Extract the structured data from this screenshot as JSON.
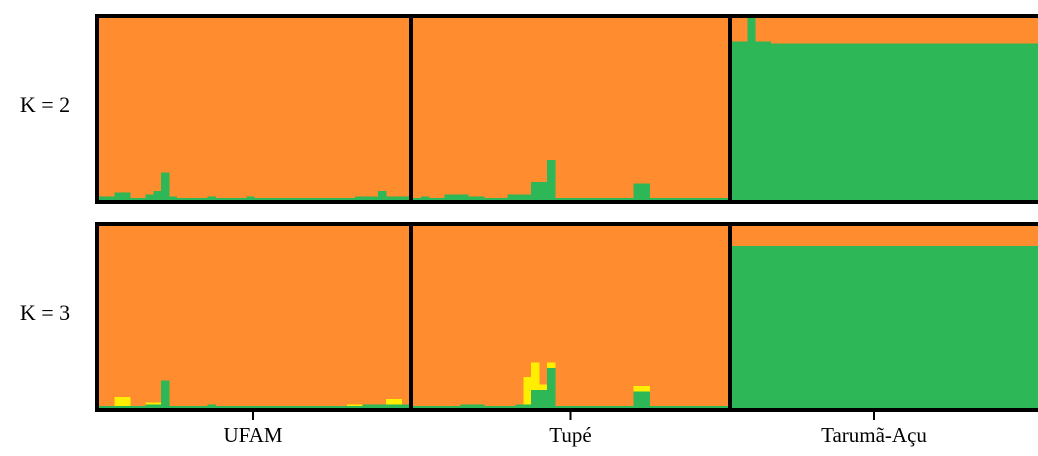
{
  "chart_data": {
    "type": "stacked-bar",
    "description_free": true,
    "colors": {
      "orange": "#ff8c2e",
      "green": "#2db757",
      "yellow": "#ffee00"
    },
    "populations": [
      {
        "name": "UFAM",
        "n": 40
      },
      {
        "name": "Tupé",
        "n": 40
      },
      {
        "name": "Tarumã-Açu",
        "n": 40
      }
    ],
    "rows": [
      {
        "label": "K = 2",
        "series": [
          {
            "color_key": "green",
            "values": [
              0.02,
              0.02,
              0.04,
              0.04,
              0.01,
              0.01,
              0.03,
              0.05,
              0.15,
              0.02,
              0.01,
              0.01,
              0.01,
              0.01,
              0.02,
              0.01,
              0.01,
              0.01,
              0.01,
              0.02,
              0.01,
              0.01,
              0.01,
              0.01,
              0.01,
              0.01,
              0.01,
              0.01,
              0.01,
              0.01,
              0.01,
              0.01,
              0.01,
              0.02,
              0.02,
              0.02,
              0.05,
              0.02,
              0.02,
              0.02,
              0.01,
              0.02,
              0.01,
              0.01,
              0.03,
              0.03,
              0.03,
              0.02,
              0.02,
              0.01,
              0.01,
              0.01,
              0.03,
              0.03,
              0.03,
              0.1,
              0.1,
              0.22,
              0.01,
              0.01,
              0.01,
              0.01,
              0.01,
              0.01,
              0.01,
              0.01,
              0.01,
              0.01,
              0.09,
              0.09,
              0.01,
              0.01,
              0.01,
              0.01,
              0.01,
              0.01,
              0.01,
              0.01,
              0.01,
              0.01,
              0.87,
              0.87,
              1.0,
              0.87,
              0.87,
              0.86,
              0.86,
              0.86,
              0.86,
              0.86,
              0.86,
              0.86,
              0.86,
              0.86,
              0.86,
              0.86,
              0.86,
              0.86,
              0.86,
              0.86,
              0.86,
              0.86,
              0.86,
              0.86,
              0.86,
              0.86,
              0.86,
              0.86,
              0.86,
              0.86,
              0.86,
              0.86,
              0.86,
              0.86,
              0.86,
              0.86,
              0.86,
              0.86,
              0.86,
              0.86
            ]
          }
        ]
      },
      {
        "label": "K = 3",
        "series": [
          {
            "color_key": "green",
            "values": [
              0.01,
              0.01,
              0.01,
              0.01,
              0.01,
              0.01,
              0.02,
              0.02,
              0.15,
              0.01,
              0.01,
              0.01,
              0.01,
              0.01,
              0.02,
              0.01,
              0.01,
              0.01,
              0.01,
              0.01,
              0.01,
              0.01,
              0.01,
              0.01,
              0.01,
              0.01,
              0.01,
              0.01,
              0.01,
              0.01,
              0.01,
              0.01,
              0.01,
              0.01,
              0.02,
              0.02,
              0.02,
              0.02,
              0.02,
              0.02,
              0.01,
              0.01,
              0.01,
              0.01,
              0.01,
              0.01,
              0.02,
              0.02,
              0.02,
              0.01,
              0.01,
              0.01,
              0.01,
              0.02,
              0.02,
              0.1,
              0.1,
              0.22,
              0.01,
              0.01,
              0.01,
              0.01,
              0.01,
              0.01,
              0.01,
              0.01,
              0.01,
              0.01,
              0.09,
              0.09,
              0.01,
              0.01,
              0.01,
              0.01,
              0.01,
              0.01,
              0.01,
              0.01,
              0.01,
              0.01,
              0.89,
              0.89,
              0.89,
              0.89,
              0.89,
              0.89,
              0.89,
              0.89,
              0.89,
              0.89,
              0.89,
              0.89,
              0.89,
              0.89,
              0.89,
              0.89,
              0.89,
              0.89,
              0.89,
              0.89,
              0.89,
              0.89,
              0.89,
              0.89,
              0.89,
              0.89,
              0.89,
              0.89,
              0.89,
              0.89,
              0.89,
              0.89,
              0.89,
              0.89,
              0.89,
              0.89,
              0.89,
              0.89,
              0.89,
              0.89
            ]
          },
          {
            "color_key": "yellow",
            "values": [
              0.0,
              0.0,
              0.05,
              0.05,
              0.0,
              0.0,
              0.01,
              0.01,
              0.0,
              0.0,
              0.0,
              0.0,
              0.0,
              0.0,
              0.0,
              0.0,
              0.0,
              0.0,
              0.0,
              0.0,
              0.0,
              0.0,
              0.0,
              0.0,
              0.0,
              0.0,
              0.0,
              0.0,
              0.0,
              0.0,
              0.0,
              0.0,
              0.01,
              0.01,
              0.0,
              0.0,
              0.0,
              0.03,
              0.03,
              0.0,
              0.0,
              0.0,
              0.0,
              0.0,
              0.0,
              0.0,
              0.0,
              0.0,
              0.0,
              0.0,
              0.0,
              0.0,
              0.0,
              0.0,
              0.15,
              0.15,
              0.03,
              0.03,
              0.0,
              0.0,
              0.0,
              0.0,
              0.0,
              0.0,
              0.0,
              0.0,
              0.0,
              0.0,
              0.03,
              0.03,
              0.0,
              0.0,
              0.0,
              0.0,
              0.0,
              0.0,
              0.0,
              0.0,
              0.0,
              0.0,
              0.0,
              0.0,
              0.0,
              0.0,
              0.0,
              0.0,
              0.0,
              0.0,
              0.0,
              0.0,
              0.0,
              0.0,
              0.0,
              0.0,
              0.0,
              0.0,
              0.0,
              0.0,
              0.0,
              0.0,
              0.0,
              0.0,
              0.0,
              0.0,
              0.0,
              0.0,
              0.0,
              0.0,
              0.0,
              0.0,
              0.0,
              0.0,
              0.0,
              0.0,
              0.0,
              0.0,
              0.0,
              0.0,
              0.0,
              0.0
            ]
          }
        ]
      }
    ]
  }
}
